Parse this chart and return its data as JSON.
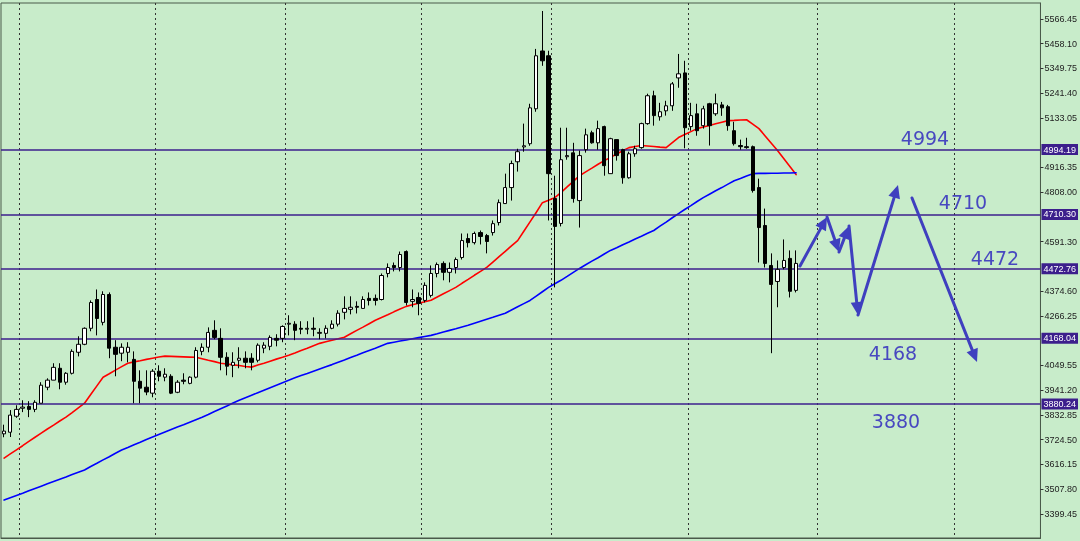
{
  "chart_data": {
    "type": "candlestick",
    "categories": [
      null,
      null,
      null,
      null,
      null,
      null,
      null,
      null,
      null,
      null,
      null,
      null,
      null,
      null,
      null,
      null,
      null,
      null,
      null,
      null,
      null,
      null,
      null,
      null,
      null,
      null,
      null,
      null,
      null,
      null,
      null,
      null,
      null,
      null,
      null,
      null,
      null,
      null,
      null,
      null,
      null,
      null,
      null,
      null,
      null,
      null,
      null,
      null,
      null,
      null,
      null,
      null,
      null,
      null,
      null,
      null,
      null,
      null,
      null,
      null,
      null,
      null,
      null,
      null,
      null,
      null,
      null,
      null,
      null,
      null,
      null,
      null,
      null,
      null,
      null,
      null,
      null,
      null,
      null,
      null,
      null,
      null,
      null,
      null,
      null,
      null,
      null,
      null,
      null,
      null,
      null,
      null,
      null,
      null,
      null,
      null,
      null,
      null,
      null,
      null,
      null,
      null,
      null,
      null,
      null,
      null,
      null,
      null,
      null,
      null,
      null,
      null,
      null,
      null,
      null,
      null,
      null,
      null,
      null,
      null,
      null,
      null,
      null,
      null,
      null,
      null,
      null,
      null,
      null,
      null,
      null,
      null,
      null,
      null,
      null,
      null,
      null,
      null,
      null,
      null,
      null,
      null,
      null,
      null,
      null,
      null,
      null,
      null,
      null,
      null,
      null,
      null,
      null,
      null,
      null,
      null,
      null,
      null,
      null,
      null,
      null,
      null,
      null,
      null,
      null,
      null,
      null,
      null
    ],
    "ohlc": [
      [
        3750,
        3790,
        3735,
        3762
      ],
      [
        3757,
        3854,
        3736,
        3832
      ],
      [
        3827,
        3875,
        3820,
        3857
      ],
      [
        3862,
        3897,
        3845,
        3867
      ],
      [
        3870,
        3893,
        3823,
        3857
      ],
      [
        3857,
        3897,
        3845,
        3888
      ],
      [
        3884,
        3976,
        3884,
        3963
      ],
      [
        3954,
        3993,
        3941,
        3985
      ],
      [
        3985,
        4059,
        3985,
        4041
      ],
      [
        4037,
        4059,
        3945,
        3976
      ],
      [
        3976,
        4020,
        3965,
        4015
      ],
      [
        4015,
        4120,
        4010,
        4111
      ],
      [
        4107,
        4177,
        4089,
        4142
      ],
      [
        4142,
        4216,
        4138,
        4212
      ],
      [
        4212,
        4334,
        4199,
        4325
      ],
      [
        4338,
        4382,
        4181,
        4255
      ],
      [
        4238,
        4374,
        4225,
        4360
      ],
      [
        4360,
        4369,
        4081,
        4125
      ],
      [
        4129,
        4160,
        4002,
        4098
      ],
      [
        4103,
        4146,
        4068,
        4129
      ],
      [
        4107,
        4151,
        4063,
        4129
      ],
      [
        4076,
        4111,
        3884,
        3980
      ],
      [
        3980,
        4028,
        3884,
        3950
      ],
      [
        3954,
        4028,
        3919,
        3933
      ],
      [
        3928,
        4033,
        3910,
        4024
      ],
      [
        4024,
        4050,
        3980,
        4002
      ],
      [
        3998,
        4037,
        3980,
        4011
      ],
      [
        4002,
        4011,
        3924,
        3928
      ],
      [
        3932,
        3985,
        3928,
        3976
      ],
      [
        3985,
        4015,
        3967,
        3980
      ],
      [
        3971,
        4002,
        3967,
        3998
      ],
      [
        3998,
        4129,
        3993,
        4115
      ],
      [
        4111,
        4146,
        4094,
        4129
      ],
      [
        4129,
        4216,
        4107,
        4194
      ],
      [
        4203,
        4247,
        4164,
        4172
      ],
      [
        4168,
        4212,
        4028,
        4085
      ],
      [
        4085,
        4107,
        4006,
        4046
      ],
      [
        4050,
        4107,
        3998,
        4063
      ],
      [
        4072,
        4129,
        4037,
        4081
      ],
      [
        4081,
        4111,
        4037,
        4063
      ],
      [
        4081,
        4103,
        4028,
        4063
      ],
      [
        4072,
        4146,
        4063,
        4138
      ],
      [
        4125,
        4151,
        4103,
        4138
      ],
      [
        4133,
        4181,
        4116,
        4172
      ],
      [
        4168,
        4186,
        4133,
        4160
      ],
      [
        4168,
        4225,
        4151,
        4220
      ],
      [
        4230,
        4269,
        4181,
        4234
      ],
      [
        4230,
        4243,
        4160,
        4203
      ],
      [
        4212,
        4243,
        4186,
        4208
      ],
      [
        4208,
        4243,
        4186,
        4212
      ],
      [
        4212,
        4260,
        4177,
        4208
      ],
      [
        4190,
        4212,
        4164,
        4194
      ],
      [
        4190,
        4225,
        4168,
        4212
      ],
      [
        4212,
        4247,
        4208,
        4230
      ],
      [
        4230,
        4291,
        4220,
        4278
      ],
      [
        4282,
        4352,
        4251,
        4299
      ],
      [
        4295,
        4352,
        4273,
        4304
      ],
      [
        4308,
        4330,
        4277,
        4304
      ],
      [
        4299,
        4352,
        4299,
        4338
      ],
      [
        4343,
        4369,
        4312,
        4334
      ],
      [
        4343,
        4360,
        4312,
        4334
      ],
      [
        4338,
        4452,
        4334,
        4443
      ],
      [
        4452,
        4496,
        4435,
        4478
      ],
      [
        4487,
        4500,
        4461,
        4478
      ],
      [
        4478,
        4548,
        4461,
        4535
      ],
      [
        4548,
        4553,
        4312,
        4325
      ],
      [
        4330,
        4382,
        4304,
        4338
      ],
      [
        4347,
        4369,
        4269,
        4321
      ],
      [
        4334,
        4413,
        4325,
        4400
      ],
      [
        4356,
        4487,
        4347,
        4452
      ],
      [
        4452,
        4500,
        4435,
        4491
      ],
      [
        4496,
        4505,
        4422,
        4457
      ],
      [
        4457,
        4500,
        4413,
        4474
      ],
      [
        4478,
        4522,
        4452,
        4513
      ],
      [
        4522,
        4627,
        4513,
        4596
      ],
      [
        4605,
        4627,
        4566,
        4587
      ],
      [
        4587,
        4635,
        4579,
        4627
      ],
      [
        4631,
        4640,
        4579,
        4614
      ],
      [
        4618,
        4625,
        4540,
        4592
      ],
      [
        4631,
        4684,
        4618,
        4670
      ],
      [
        4675,
        4776,
        4662,
        4762
      ],
      [
        4758,
        4889,
        4758,
        4828
      ],
      [
        4828,
        4946,
        4771,
        4933
      ],
      [
        4941,
        4998,
        4898,
        4985
      ],
      [
        5006,
        5108,
        4985,
        5011
      ],
      [
        5020,
        5195,
        5011,
        5177
      ],
      [
        5173,
        5435,
        5160,
        5405
      ],
      [
        5426,
        5601,
        5361,
        5383
      ],
      [
        5405,
        5427,
        4684,
        4889
      ],
      [
        4780,
        4880,
        4391,
        4658
      ],
      [
        4671,
        5090,
        4658,
        4950
      ],
      [
        4963,
        5090,
        4950,
        4968
      ],
      [
        4980,
        5024,
        4762,
        4780
      ],
      [
        4771,
        4990,
        4653,
        4968
      ],
      [
        4994,
        5086,
        4981,
        5059
      ],
      [
        5068,
        5077,
        5020,
        5024
      ],
      [
        5024,
        5121,
        4994,
        5086
      ],
      [
        5095,
        5099,
        4880,
        4924
      ],
      [
        4889,
        5046,
        4889,
        5042
      ],
      [
        5038,
        5038,
        4946,
        4968
      ],
      [
        4994,
        4998,
        4845,
        4871
      ],
      [
        4871,
        4985,
        4867,
        4976
      ],
      [
        4976,
        5011,
        4963,
        4998
      ],
      [
        5003,
        5112,
        4998,
        5108
      ],
      [
        5108,
        5239,
        5103,
        5230
      ],
      [
        5230,
        5252,
        5099,
        5143
      ],
      [
        5138,
        5199,
        5121,
        5160
      ],
      [
        5164,
        5208,
        5143,
        5186
      ],
      [
        5186,
        5290,
        5164,
        5282
      ],
      [
        5308,
        5413,
        5265,
        5326
      ],
      [
        5330,
        5383,
        5000,
        5090
      ],
      [
        5095,
        5199,
        5077,
        5143
      ],
      [
        5151,
        5195,
        5055,
        5077
      ],
      [
        5099,
        5186,
        5086,
        5173
      ],
      [
        5195,
        5199,
        5012,
        5099
      ],
      [
        5151,
        5239,
        5142,
        5195
      ],
      [
        5190,
        5203,
        5142,
        5177
      ],
      [
        5182,
        5190,
        5077,
        5099
      ],
      [
        5077,
        5116,
        5012,
        5020
      ],
      [
        5012,
        5038,
        4994,
        5007
      ],
      [
        5007,
        5046,
        4998,
        5003
      ],
      [
        5007,
        5012,
        4806,
        4815
      ],
      [
        4828,
        4867,
        4500,
        4653
      ],
      [
        4662,
        4736,
        4478,
        4496
      ],
      [
        4487,
        4540,
        4103,
        4404
      ],
      [
        4417,
        4509,
        4304,
        4470
      ],
      [
        4478,
        4601,
        4470,
        4509
      ],
      [
        4518,
        4553,
        4347,
        4374
      ],
      [
        4378,
        4553,
        4369,
        4496
      ],
      null,
      null,
      null,
      null,
      null,
      null,
      null,
      null,
      null,
      null,
      null,
      null,
      null,
      null,
      null,
      null,
      null,
      null,
      null,
      null,
      null,
      null,
      null,
      null,
      null,
      null,
      null,
      null,
      null,
      null,
      null,
      null,
      null,
      null,
      null,
      null,
      null,
      null,
      null
    ],
    "color": "#000000",
    "series": [
      {
        "type": "line",
        "color": "#ff0000",
        "values": [
          3644,
          3662,
          3680,
          3698,
          3717,
          3735,
          3753,
          3771,
          3788,
          3806,
          3823,
          3843,
          3864,
          3884,
          3922,
          3960,
          3998,
          4013,
          4029,
          4044,
          4059,
          4065,
          4070,
          4076,
          4081,
          4086,
          4090,
          4089,
          4088,
          4087,
          4086,
          4085,
          4079,
          4072,
          4066,
          4059,
          4056,
          4052,
          4049,
          4045,
          4042,
          4051,
          4059,
          4068,
          4077,
          4085,
          4094,
          4104,
          4115,
          4125,
          4136,
          4146,
          4153,
          4160,
          4166,
          4173,
          4188,
          4203,
          4217,
          4232,
          4247,
          4259,
          4271,
          4284,
          4296,
          4308,
          4315,
          4322,
          4328,
          4335,
          4349,
          4363,
          4377,
          4391,
          4409,
          4426,
          4444,
          4461,
          4479,
          4502,
          4526,
          4549,
          4573,
          4596,
          4637,
          4678,
          4719,
          4762,
          4773,
          4784,
          4806,
          4831,
          4855,
          4880,
          4897,
          4913,
          4930,
          4946,
          4960,
          4975,
          4989,
          5003,
          5008,
          5012,
          5010,
          5008,
          5005,
          5003,
          5025,
          5047,
          5060,
          5073,
          5086,
          5093,
          5100,
          5107,
          5114,
          5121,
          5122,
          5124,
          5125,
          5106,
          5086,
          5054,
          5022,
          4990,
          4955,
          4920,
          4885,
          null,
          null,
          null,
          null,
          null,
          null,
          null,
          null,
          null,
          null,
          null,
          null,
          null,
          null,
          null,
          null,
          null,
          null,
          null,
          null,
          null,
          null,
          null,
          null,
          null,
          null,
          null,
          null,
          null,
          null,
          null,
          null,
          null,
          null,
          null,
          null,
          null,
          null,
          null
        ]
      },
      {
        "type": "line",
        "color": "#0000ff",
        "values": [
          3460,
          3470,
          3480,
          3490,
          3501,
          3511,
          3521,
          3531,
          3541,
          3551,
          3561,
          3572,
          3582,
          3592,
          3607,
          3621,
          3636,
          3650,
          3665,
          3679,
          3690,
          3702,
          3713,
          3725,
          3736,
          3747,
          3758,
          3769,
          3780,
          3790,
          3801,
          3812,
          3823,
          3835,
          3848,
          3860,
          3872,
          3885,
          3897,
          3908,
          3919,
          3930,
          3941,
          3952,
          3963,
          3974,
          3985,
          3995,
          4005,
          4014,
          4024,
          4034,
          4044,
          4053,
          4063,
          4073,
          4084,
          4094,
          4105,
          4115,
          4125,
          4136,
          4146,
          4151,
          4156,
          4161,
          4166,
          4171,
          4176,
          4181,
          4188,
          4196,
          4203,
          4210,
          4218,
          4225,
          4234,
          4243,
          4252,
          4260,
          4269,
          4278,
          4292,
          4306,
          4320,
          4334,
          4353,
          4372,
          4391,
          4407,
          4422,
          4439,
          4457,
          4474,
          4490,
          4506,
          4521,
          4537,
          4553,
          4565,
          4578,
          4590,
          4603,
          4615,
          4628,
          4640,
          4659,
          4677,
          4696,
          4714,
          4732,
          4749,
          4767,
          4784,
          4799,
          4814,
          4828,
          4843,
          4858,
          4868,
          4879,
          4889,
          4890,
          4890,
          4891,
          4891,
          4892,
          4892,
          4893,
          null,
          null,
          null,
          null,
          null,
          null,
          null,
          null,
          null,
          null,
          null,
          null,
          null,
          null,
          null,
          null,
          null,
          null,
          null,
          null,
          null,
          null,
          null,
          null,
          null,
          null,
          null,
          null,
          null,
          null,
          null,
          null,
          null,
          null,
          null,
          null,
          null,
          null,
          null
        ]
      }
    ],
    "ylim": [
      3294,
      5636
    ],
    "yticks": [
      5566.45,
      {
        "value": 5458.1,
        "label": "5458.10"
      },
      5349.75,
      {
        "value": 5241.4,
        "label": "5241.40"
      },
      5133.05,
      4916.35,
      {
        "value": 4808,
        "label": "4808.00"
      },
      {
        "value": 4591.3,
        "label": "4591.30"
      },
      {
        "value": 4374.6,
        "label": "4374.60"
      },
      4266.25,
      4049.55,
      {
        "value": 3941.2,
        "label": "3941.20"
      },
      3832.85,
      {
        "value": 3724.5,
        "label": "3724.50"
      },
      3616.15,
      {
        "value": 3507.8,
        "label": "3507.80"
      },
      3399.45
    ],
    "ref_lines": [
      {
        "axis": "y",
        "value": 4994.19,
        "label": "4994.19",
        "color": "#3c1f8c"
      },
      {
        "axis": "y",
        "value": 4710.3,
        "label": "4710.30",
        "color": "#3c1f8c"
      },
      {
        "axis": "y",
        "value": 4472.76,
        "label": "4472.76",
        "color": "#3c1f8c"
      },
      {
        "axis": "y",
        "value": 4168.04,
        "label": "4168.04",
        "color": "#3c1f8c"
      },
      {
        "axis": "y",
        "value": 3880.24,
        "label": "3880.24",
        "color": "#3c1f8c"
      }
    ],
    "annotations": [
      {
        "text": "4994",
        "y": 4994.19
      },
      {
        "text": "4710",
        "y": 4710.3
      },
      {
        "text": "4472",
        "y": 4472.76
      },
      {
        "text": "4168",
        "y": 4168.04
      },
      {
        "text": "3880",
        "y": 3880.24
      }
    ],
    "grid": "x",
    "tick_labels": "y",
    "line_style": "solid"
  }
}
